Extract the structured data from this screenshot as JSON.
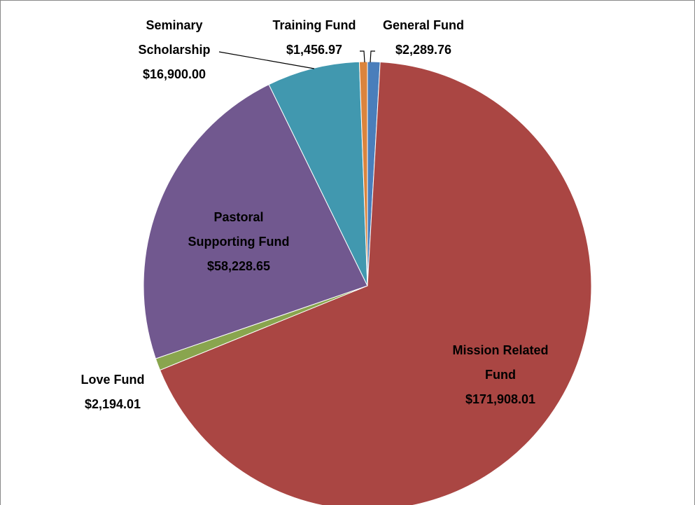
{
  "chart_data": {
    "type": "pie",
    "categories": [
      "General Fund",
      "Mission Related Fund",
      "Love Fund",
      "Pastoral Supporting Fund",
      "Seminary Scholarship",
      "Training Fund"
    ],
    "values": [
      2289.76,
      171908.01,
      2194.01,
      58228.65,
      16900.0,
      1456.97
    ],
    "value_labels": [
      "$2,289.76",
      "$171,908.01",
      "$2,194.01",
      "$58,228.65",
      "$16,900.00",
      "$1,456.97"
    ],
    "colors": [
      "#4a7ebb",
      "#aa4643",
      "#89a54e",
      "#71588f",
      "#4198af",
      "#db843d"
    ]
  }
}
